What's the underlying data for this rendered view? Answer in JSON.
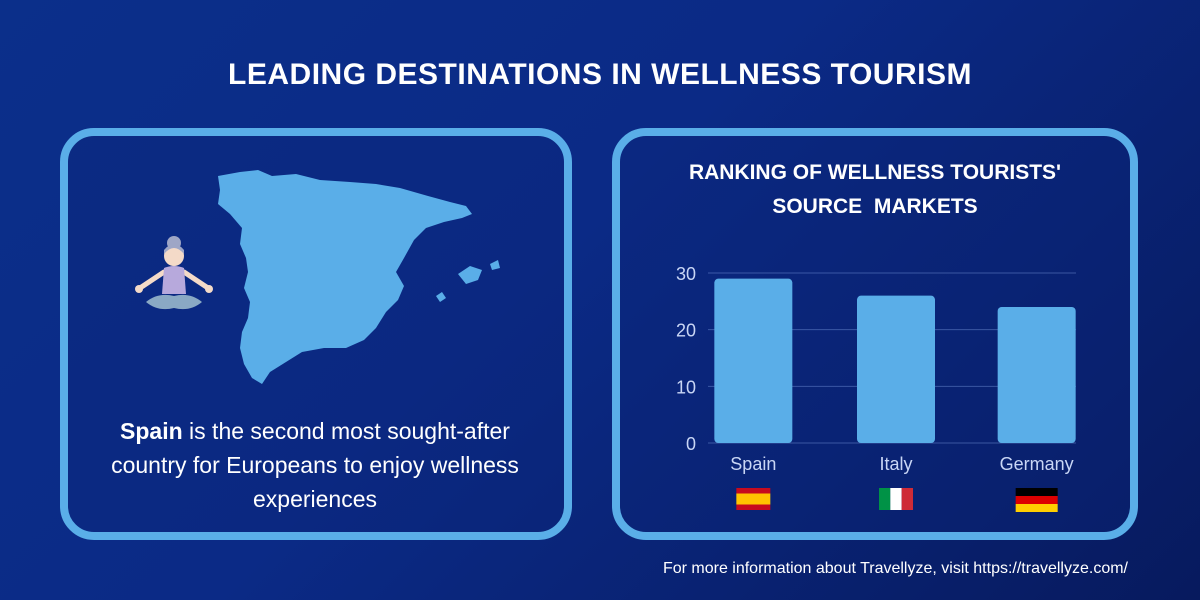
{
  "title": "LEADING DESTINATIONS IN WELLNESS TOURISM",
  "left_panel": {
    "caption_bold": "Spain",
    "caption_rest": " is the second most sought-after country for Europeans to enjoy wellness experiences"
  },
  "chart_data": {
    "type": "bar",
    "title_line1": "RANKING OF WELLNESS TOURISTS'",
    "title_line2": "SOURCE  MARKETS",
    "categories": [
      "Spain",
      "Italy",
      "Germany"
    ],
    "values": [
      29,
      26,
      24
    ],
    "ylim": [
      0,
      30
    ],
    "yticks": [
      "0",
      "10",
      "20",
      "30"
    ],
    "grid": true,
    "bar_color": "#5aaee8",
    "flags": [
      "spain-flag",
      "italy-flag",
      "germany-flag"
    ]
  },
  "footer": "For more information about Travellyze, visit https://travellyze.com/",
  "colors": {
    "background": "#0b2a86",
    "accent": "#5aaee8",
    "text": "#ffffff"
  }
}
